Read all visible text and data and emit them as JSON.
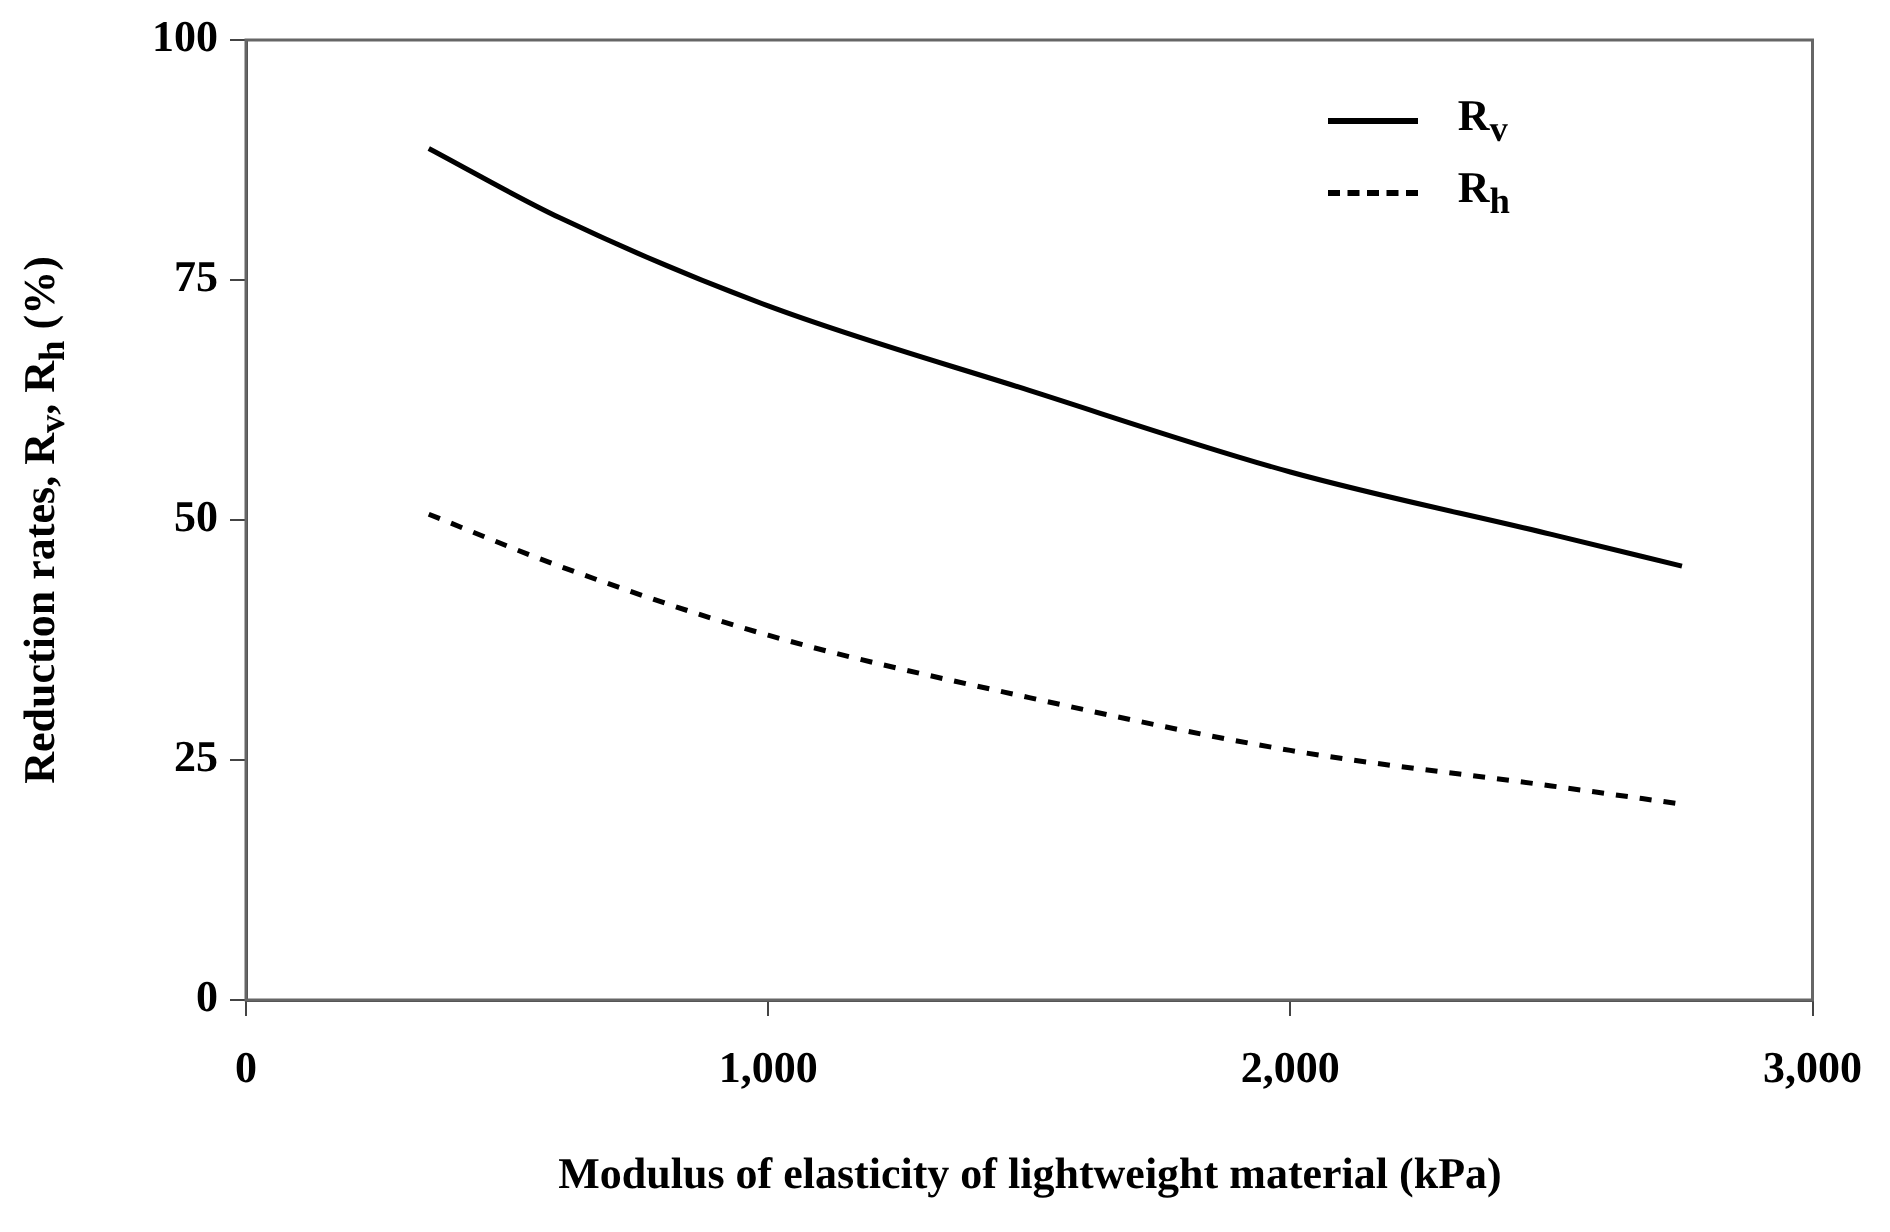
{
  "chart_data": {
    "type": "line",
    "xlabel": "Modulus of elasticity of lightweight material (kPa)",
    "ylabel": "Reduction rates, R$_{v}$, R$_{h}$ (%)",
    "xlim": [
      0,
      3000
    ],
    "xticks": [
      0,
      {
        "value": 1000,
        "label": "1,000"
      },
      {
        "value": 2000,
        "label": "2,000"
      },
      {
        "value": 3000,
        "label": "3,000"
      }
    ],
    "ylim": [
      0,
      100
    ],
    "yticks": [
      0,
      25,
      50,
      75,
      100
    ],
    "grid": false,
    "legend": "top right",
    "marker": "none",
    "series": [
      {
        "name": "R$_{v}$",
        "color": "#000000",
        "line_style": "solid",
        "x": [
          350,
          600,
          1000,
          1500,
          2000,
          2500,
          2750
        ],
        "values": [
          88.7,
          81.5,
          72.3,
          63.5,
          55,
          48.5,
          45.2
        ]
      },
      {
        "name": "R$_{h}$",
        "color": "#000000",
        "line_style": "dashed",
        "x": [
          350,
          600,
          1000,
          1500,
          2000,
          2500,
          2750
        ],
        "values": [
          50.6,
          45.2,
          38,
          31.5,
          26,
          22.3,
          20.4
        ]
      }
    ]
  }
}
